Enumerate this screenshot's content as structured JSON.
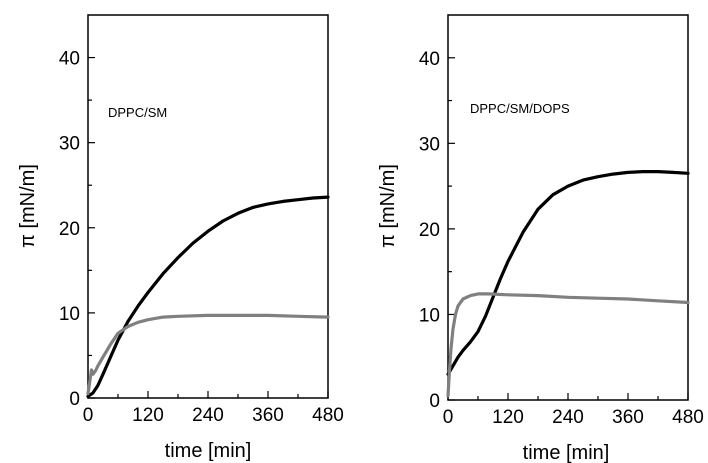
{
  "chart_data": [
    {
      "type": "line",
      "annotation": "DPPC/SM",
      "xlabel": "time [min]",
      "ylabel": "π [mN/m]",
      "xlim": [
        0,
        480
      ],
      "ylim": [
        0,
        45
      ],
      "xticks": [
        0,
        120,
        240,
        360,
        480
      ],
      "yticks": [
        0,
        10,
        20,
        30,
        40
      ],
      "grid": false,
      "series": [
        {
          "color": "#000000",
          "x": [
            0,
            10,
            20,
            30,
            45,
            60,
            80,
            100,
            120,
            150,
            180,
            210,
            240,
            270,
            300,
            330,
            360,
            390,
            420,
            450,
            480
          ],
          "y": [
            0.2,
            0.6,
            1.5,
            2.8,
            4.8,
            6.8,
            9.0,
            10.8,
            12.4,
            14.6,
            16.5,
            18.2,
            19.6,
            20.8,
            21.7,
            22.4,
            22.8,
            23.1,
            23.3,
            23.5,
            23.6
          ]
        },
        {
          "color": "#808080",
          "x": [
            0,
            5,
            7,
            10,
            15,
            20,
            30,
            45,
            60,
            80,
            100,
            120,
            150,
            180,
            240,
            300,
            360,
            420,
            480
          ],
          "y": [
            0.5,
            2.5,
            3.3,
            2.8,
            3.2,
            3.8,
            4.8,
            6.3,
            7.6,
            8.4,
            8.9,
            9.2,
            9.5,
            9.6,
            9.7,
            9.7,
            9.7,
            9.6,
            9.5
          ]
        }
      ]
    },
    {
      "type": "line",
      "annotation": "DPPC/SM/DOPS",
      "xlabel": "time [min]",
      "ylabel": "π [mN/m]",
      "xlim": [
        0,
        480
      ],
      "ylim": [
        0,
        45
      ],
      "xticks": [
        0,
        120,
        240,
        360,
        480
      ],
      "yticks": [
        0,
        10,
        20,
        30,
        40
      ],
      "grid": false,
      "series": [
        {
          "color": "#000000",
          "x": [
            0,
            10,
            20,
            30,
            45,
            60,
            75,
            90,
            105,
            120,
            150,
            180,
            210,
            240,
            270,
            300,
            330,
            360,
            390,
            420,
            450,
            480
          ],
          "y": [
            3.0,
            4.0,
            5.0,
            5.8,
            6.8,
            8.0,
            9.8,
            12.0,
            14.2,
            16.2,
            19.6,
            22.3,
            24.0,
            25.0,
            25.7,
            26.1,
            26.4,
            26.6,
            26.7,
            26.7,
            26.6,
            26.5
          ]
        },
        {
          "color": "#808080",
          "x": [
            0,
            3,
            6,
            10,
            15,
            20,
            30,
            45,
            60,
            80,
            120,
            180,
            240,
            300,
            360,
            420,
            480
          ],
          "y": [
            0.5,
            3.5,
            6.0,
            8.3,
            10.0,
            11.0,
            11.8,
            12.2,
            12.4,
            12.4,
            12.3,
            12.2,
            12.0,
            11.9,
            11.8,
            11.6,
            11.4
          ]
        }
      ]
    }
  ]
}
